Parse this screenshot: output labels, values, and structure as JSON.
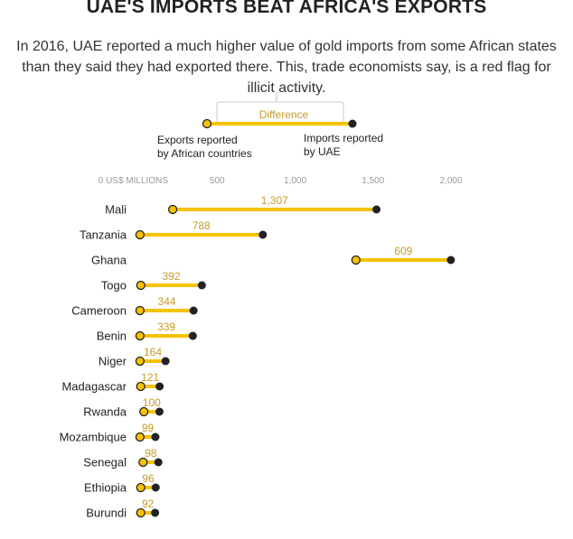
{
  "header": {
    "title": "UAE'S IMPORTS BEAT AFRICA'S EXPORTS",
    "subtitle": "In 2016, UAE reported a much higher value of gold imports from some African states than they said they had exported there. This, trade economists say, is a red flag for illicit activity."
  },
  "legend": {
    "difference": "Difference",
    "exports_line1": "Exports reported",
    "exports_line2": "by African countries",
    "imports_line1": "Imports reported",
    "imports_line2": "by UAE"
  },
  "colors": {
    "bar": "#f5c200",
    "export_dot": "#f5c200",
    "import_dot": "#222222",
    "label": "#c89a2a",
    "axis_text": "#9a9a9a"
  },
  "chart_data": {
    "type": "dumbbell",
    "x_unit_label": "0 US$ MILLIONS",
    "x_ticks": [
      0,
      500,
      1000,
      1500,
      2000
    ],
    "x_tick_labels": [
      "0 US$ MILLIONS",
      "500",
      "1,000",
      "1,500",
      "2,000"
    ],
    "xlim": [
      0,
      2000
    ],
    "categories": [
      "Mali",
      "Tanzania",
      "Ghana",
      "Togo",
      "Cameroon",
      "Benin",
      "Niger",
      "Madagascar",
      "Rwanda",
      "Mozambique",
      "Senegal",
      "Ethiopia",
      "Burundi"
    ],
    "series": [
      {
        "name": "Exports reported by African countries",
        "values": [
          215,
          5,
          1390,
          10,
          5,
          5,
          5,
          10,
          30,
          5,
          25,
          10,
          10
        ]
      },
      {
        "name": "Imports reported by UAE",
        "values": [
          1522,
          793,
          1999,
          402,
          349,
          344,
          169,
          131,
          130,
          104,
          123,
          106,
          102
        ]
      }
    ],
    "difference_labels": [
      "1,307",
      "788",
      "609",
      "392",
      "344",
      "339",
      "164",
      "121",
      "100",
      "99",
      "98",
      "96",
      "92"
    ]
  }
}
